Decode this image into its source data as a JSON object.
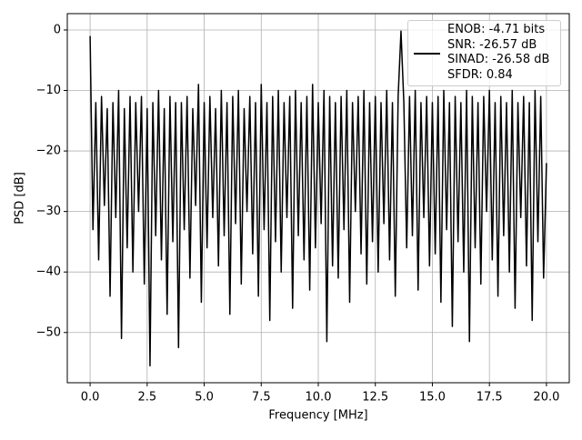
{
  "chart_data": {
    "type": "line",
    "xlabel": "Frequency [MHz]",
    "ylabel": "PSD [dB]",
    "xlim": [
      -1.0,
      21.0
    ],
    "ylim": [
      -58.3,
      2.7
    ],
    "xticks": [
      {
        "value": 0,
        "label": "0.0"
      },
      2.5,
      {
        "value": 5,
        "label": "5.0"
      },
      7.5,
      {
        "value": 10,
        "label": "10.0"
      },
      12.5,
      {
        "value": 15,
        "label": "15.0"
      },
      17.5,
      {
        "value": 20,
        "label": "20.0"
      }
    ],
    "yticks": [
      {
        "value": -50,
        "label": "−50"
      },
      {
        "value": -40,
        "label": "−40"
      },
      {
        "value": -30,
        "label": "−30"
      },
      {
        "value": -20,
        "label": "−20"
      },
      {
        "value": -10,
        "label": "−10"
      },
      0
    ],
    "grid": true,
    "legend": "upper right",
    "x": [
      0,
      0.125,
      0.25,
      0.375,
      0.5,
      0.625,
      0.75,
      0.875,
      1,
      1.125,
      1.25,
      1.375,
      1.5,
      1.625,
      1.75,
      1.875,
      2,
      2.125,
      2.25,
      2.375,
      2.5,
      2.625,
      2.75,
      2.875,
      3,
      3.125,
      3.25,
      3.375,
      3.5,
      3.625,
      3.75,
      3.875,
      4,
      4.125,
      4.25,
      4.375,
      4.5,
      4.625,
      4.75,
      4.875,
      5,
      5.125,
      5.25,
      5.375,
      5.5,
      5.625,
      5.75,
      5.875,
      6,
      6.125,
      6.25,
      6.375,
      6.5,
      6.625,
      6.75,
      6.875,
      7,
      7.125,
      7.25,
      7.375,
      7.5,
      7.625,
      7.75,
      7.875,
      8,
      8.125,
      8.25,
      8.375,
      8.5,
      8.625,
      8.75,
      8.875,
      9,
      9.125,
      9.25,
      9.375,
      9.5,
      9.625,
      9.75,
      9.875,
      10,
      10.125,
      10.25,
      10.375,
      10.5,
      10.625,
      10.75,
      10.875,
      11,
      11.125,
      11.25,
      11.375,
      11.5,
      11.625,
      11.75,
      11.875,
      12,
      12.125,
      12.25,
      12.375,
      12.5,
      12.625,
      12.75,
      12.875,
      13,
      13.125,
      13.25,
      13.375,
      13.5,
      13.625,
      13.75,
      13.875,
      14,
      14.125,
      14.25,
      14.375,
      14.5,
      14.625,
      14.75,
      14.875,
      15,
      15.125,
      15.25,
      15.375,
      15.5,
      15.625,
      15.75,
      15.875,
      16,
      16.125,
      16.25,
      16.375,
      16.5,
      16.625,
      16.75,
      16.875,
      17,
      17.125,
      17.25,
      17.375,
      17.5,
      17.625,
      17.75,
      17.875,
      18,
      18.125,
      18.25,
      18.375,
      18.5,
      18.625,
      18.75,
      18.875,
      19,
      19.125,
      19.25,
      19.375,
      19.5,
      19.625,
      19.75,
      19.875,
      20
    ],
    "series": [
      {
        "name": "ENOB: -4.71 bits\nSNR: -26.57 dB\nSINAD: -26.58 dB\nSFDR: 0.84",
        "color": "#000000",
        "values": [
          -1,
          -33,
          -12,
          -38,
          -11,
          -29,
          -13,
          -44,
          -12,
          -31,
          -10,
          -51,
          -13,
          -36,
          -11,
          -40,
          -12,
          -30,
          -11,
          -42,
          -13,
          -55.5,
          -12,
          -34,
          -10,
          -38,
          -13,
          -47,
          -11,
          -35,
          -12,
          -52.5,
          -12,
          -33,
          -11,
          -41,
          -13,
          -29,
          -9,
          -45,
          -12,
          -36,
          -11,
          -31,
          -13,
          -39,
          -10,
          -34,
          -12,
          -47,
          -11,
          -32,
          -10,
          -42,
          -13,
          -30,
          -11,
          -37,
          -12,
          -44,
          -9,
          -33,
          -12,
          -48,
          -11,
          -35,
          -10,
          -40,
          -12,
          -31,
          -11,
          -46,
          -10,
          -34,
          -12,
          -38,
          -11,
          -43,
          -9,
          -36,
          -12,
          -32,
          -10,
          -51.5,
          -11,
          -39,
          -12,
          -41,
          -11,
          -33,
          -10,
          -45,
          -12,
          -30,
          -11,
          -37,
          -10,
          -42,
          -12,
          -35,
          -11,
          -40,
          -12,
          -32,
          -10,
          -38,
          -12,
          -44,
          -11,
          -0.2,
          -12,
          -36,
          -11,
          -34,
          -10,
          -43,
          -12,
          -31,
          -11,
          -39,
          -12,
          -37,
          -11,
          -45,
          -10,
          -33,
          -12,
          -49,
          -11,
          -35,
          -12,
          -40,
          -10,
          -51.5,
          -11,
          -36,
          -12,
          -42,
          -11,
          -30,
          -10,
          -38,
          -12,
          -44,
          -11,
          -34,
          -12,
          -40,
          -10,
          -46,
          -12,
          -31,
          -11,
          -39,
          -12,
          -48,
          -10,
          -35,
          -11,
          -41,
          -22
        ]
      }
    ]
  }
}
